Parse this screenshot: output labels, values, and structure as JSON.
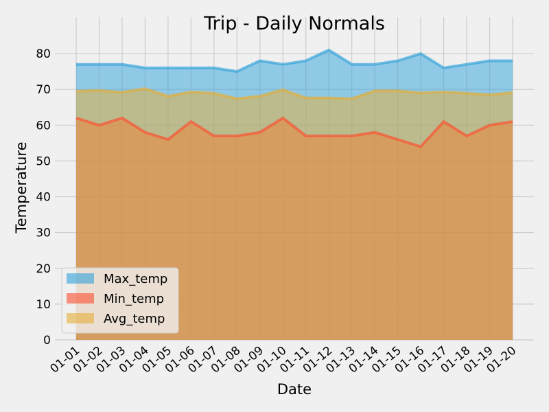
{
  "chart_data": {
    "type": "area",
    "title": "Trip - Daily Normals",
    "xlabel": "Date",
    "ylabel": "Temperature",
    "categories": [
      "01-01",
      "01-02",
      "01-03",
      "01-04",
      "01-05",
      "01-06",
      "01-07",
      "01-08",
      "01-09",
      "01-10",
      "01-11",
      "01-12",
      "01-13",
      "01-14",
      "01-15",
      "01-16",
      "01-17",
      "01-18",
      "01-19",
      "01-20"
    ],
    "ylim": [
      0,
      85
    ],
    "yticks": [
      0,
      10,
      20,
      30,
      40,
      50,
      60,
      70,
      80
    ],
    "grid": true,
    "stacked": false,
    "legend_position": "lower-left",
    "series": [
      {
        "name": "Max_temp",
        "color": "#30a2da",
        "values": [
          77,
          77,
          77,
          76,
          76,
          76,
          76,
          75,
          78,
          77,
          78,
          81,
          77,
          77,
          78,
          80,
          76,
          77,
          78,
          78
        ]
      },
      {
        "name": "Min_temp",
        "color": "#fc4f30",
        "values": [
          62,
          60,
          62,
          58,
          56,
          61,
          57,
          57,
          58,
          62,
          57,
          57,
          57,
          58,
          56,
          54,
          61,
          57,
          60,
          61
        ]
      },
      {
        "name": "Avg_temp",
        "color": "#e5ae38",
        "values": [
          69.5,
          69.7,
          69.2,
          70.2,
          68.1,
          69.3,
          68.9,
          67.4,
          68.1,
          69.9,
          67.6,
          67.6,
          67.4,
          69.6,
          69.6,
          69.0,
          69.3,
          68.9,
          68.5,
          69.1
        ]
      }
    ]
  }
}
